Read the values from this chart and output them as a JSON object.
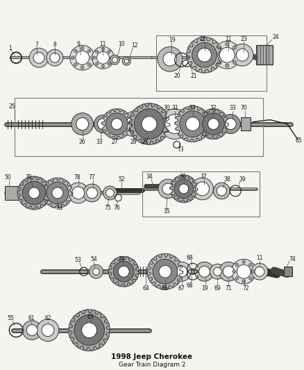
{
  "bg_color": "#f5f5f0",
  "line_color": "#1a1a1a",
  "fig_width": 4.38,
  "fig_height": 5.33,
  "title1": "1998 Jeep Cherokee",
  "title2": "Gear Train Diagram 2"
}
